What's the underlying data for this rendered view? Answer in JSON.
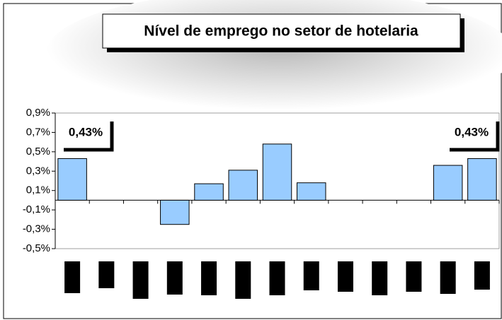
{
  "chart_data": {
    "type": "bar",
    "title": "Nível de emprego no setor de hotelaria",
    "categories": [
      null,
      null,
      null,
      null,
      null,
      null,
      null,
      null,
      null,
      null,
      null,
      null,
      null
    ],
    "values": [
      0.43,
      null,
      null,
      -0.25,
      0.17,
      0.31,
      0.58,
      0.18,
      null,
      null,
      null,
      0.36,
      0.43
    ],
    "value_labels": [
      "0,43%",
      null,
      null,
      null,
      null,
      null,
      null,
      null,
      null,
      null,
      null,
      null,
      "0,43%"
    ],
    "color": "#99ccff",
    "ylim": [
      -0.5,
      0.9
    ],
    "yticks": [
      {
        "value": -0.5,
        "label": "-0,5%"
      },
      {
        "value": -0.3,
        "label": "-0,3%"
      },
      {
        "value": -0.1,
        "label": "-0,1%"
      },
      {
        "value": 0.1,
        "label": "0,1%"
      },
      {
        "value": 0.3,
        "label": "0,3%"
      },
      {
        "value": 0.5,
        "label": "0,5%"
      },
      {
        "value": 0.7,
        "label": "0,7%"
      },
      {
        "value": 0.9,
        "label": "0,9%"
      }
    ],
    "grid": false
  }
}
